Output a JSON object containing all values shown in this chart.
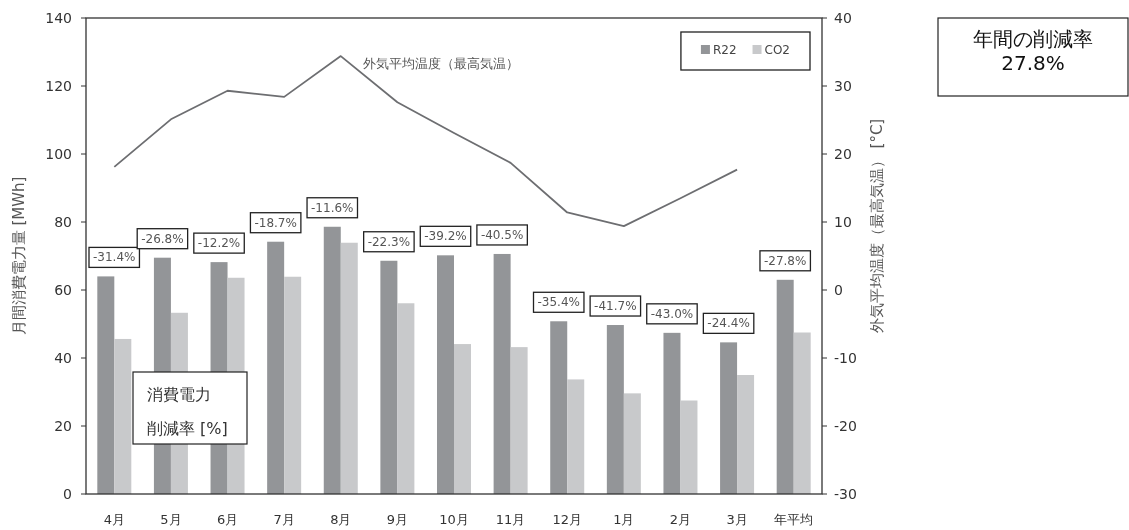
{
  "chart_data": {
    "type": "bar",
    "categories": [
      "4月",
      "5月",
      "6月",
      "7月",
      "8月",
      "9月",
      "10月",
      "11月",
      "12月",
      "1月",
      "2月",
      "3月",
      "年平均"
    ],
    "series": [
      {
        "name": "R22",
        "color": "#939598",
        "values": [
          64.0,
          69.5,
          68.2,
          74.2,
          78.6,
          68.6,
          70.2,
          70.6,
          50.8,
          49.7,
          47.4,
          44.6,
          63.0
        ]
      },
      {
        "name": "CO2",
        "color": "#c8c9cb",
        "values": [
          45.6,
          53.3,
          63.6,
          63.9,
          73.9,
          56.1,
          44.1,
          43.2,
          33.7,
          29.6,
          27.5,
          35.0,
          47.5
        ]
      },
      {
        "name": "外気平均温度（最高気温）",
        "type": "line",
        "axis": "y2",
        "color": "#6d6e71",
        "values": [
          18.1,
          25.1,
          29.3,
          28.4,
          34.4,
          27.6,
          23.1,
          18.7,
          11.4,
          9.4,
          13.5,
          17.7,
          null
        ]
      }
    ],
    "ylabel": "月間消費電力量 [MWh]",
    "y2label": "外気平均温度（最高気温） [°C]",
    "ylim": [
      0,
      140
    ],
    "yticks": [
      0,
      20,
      40,
      60,
      80,
      100,
      120,
      140
    ],
    "y2lim": [
      -30,
      40
    ],
    "y2ticks": [
      -30,
      -20,
      -10,
      0,
      10,
      20,
      30,
      40
    ],
    "legend": "top right",
    "annotations": [
      {
        "text": "-31.4%",
        "x": "4月",
        "y": 64.0
      },
      {
        "text": "-26.8%",
        "x": "5月",
        "y": 69.5
      },
      {
        "text": "-12.2%",
        "x": "6月",
        "y": 68.2
      },
      {
        "text": "-18.7%",
        "x": "7月",
        "y": 74.2
      },
      {
        "text": "-11.6%",
        "x": "8月",
        "y": 78.6
      },
      {
        "text": "-22.3%",
        "x": "9月",
        "y": 68.6
      },
      {
        "text": "-39.2%",
        "x": "10月",
        "y": 70.2
      },
      {
        "text": "-40.5%",
        "x": "11月",
        "y": 70.6
      },
      {
        "text": "-35.4%",
        "x": "12月",
        "y": 50.8
      },
      {
        "text": "-41.7%",
        "x": "1月",
        "y": 49.7
      },
      {
        "text": "-43.0%",
        "x": "2月",
        "y": 47.4
      },
      {
        "text": "-24.4%",
        "x": "3月",
        "y": 44.6
      },
      {
        "text": "-27.8%",
        "x": "年平均",
        "y": 63.0
      },
      "消費電力",
      "削減率 [%]",
      "年間の削減率",
      "27.8%"
    ]
  }
}
